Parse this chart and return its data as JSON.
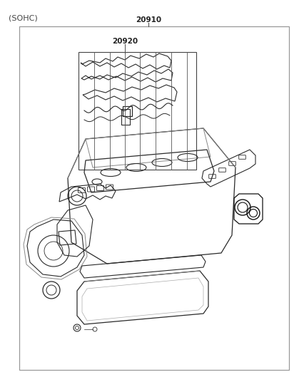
{
  "title": "(SOHC)",
  "label_20910": "20910",
  "label_20920": "20920",
  "bg_color": "#ffffff",
  "line_color": "#2a2a2a",
  "fig_width": 4.19,
  "fig_height": 5.43,
  "dpi": 100
}
